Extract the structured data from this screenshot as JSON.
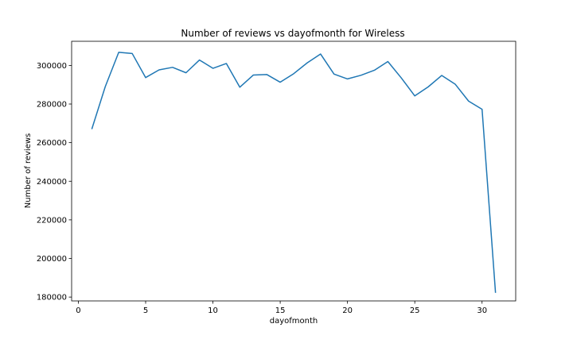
{
  "chart_data": {
    "type": "line",
    "title": "Number of reviews vs dayofmonth for Wireless",
    "xlabel": "dayofmonth",
    "ylabel": "Number of reviews",
    "xlim": [
      -0.5,
      32.5
    ],
    "ylim": [
      178000,
      312500
    ],
    "xticks": [
      0,
      5,
      10,
      15,
      20,
      25,
      30
    ],
    "yticks": [
      180000,
      200000,
      220000,
      240000,
      260000,
      280000,
      300000
    ],
    "grid": false,
    "line_color": "#1f77b4",
    "series": [
      {
        "x": [
          1,
          2,
          3,
          4,
          5,
          6,
          7,
          8,
          9,
          10,
          11,
          12,
          13,
          14,
          15,
          16,
          17,
          18,
          19,
          20,
          21,
          22,
          23,
          24,
          25,
          26,
          27,
          28,
          29,
          30,
          31
        ],
        "values": [
          267000,
          289000,
          306800,
          306200,
          293700,
          297700,
          299000,
          296200,
          302800,
          298500,
          301000,
          288700,
          295000,
          295300,
          291300,
          295700,
          301300,
          305900,
          295500,
          293000,
          294900,
          297500,
          302000,
          293500,
          284200,
          288900,
          294800,
          290300,
          281500,
          277300,
          182200
        ]
      }
    ]
  }
}
